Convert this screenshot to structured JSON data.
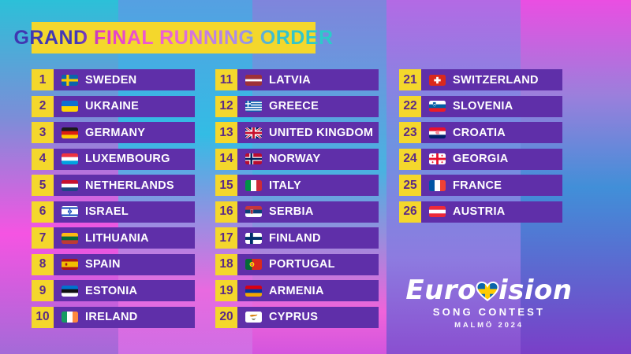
{
  "title": "GRAND FINAL RUNNING ORDER",
  "entries": [
    {
      "num": "1",
      "country": "SWEDEN",
      "flag": "se"
    },
    {
      "num": "2",
      "country": "UKRAINE",
      "flag": "ua"
    },
    {
      "num": "3",
      "country": "GERMANY",
      "flag": "de"
    },
    {
      "num": "4",
      "country": "LUXEMBOURG",
      "flag": "lu"
    },
    {
      "num": "5",
      "country": "NETHERLANDS",
      "flag": "nl"
    },
    {
      "num": "6",
      "country": "ISRAEL",
      "flag": "il"
    },
    {
      "num": "7",
      "country": "LITHUANIA",
      "flag": "lt"
    },
    {
      "num": "8",
      "country": "SPAIN",
      "flag": "es"
    },
    {
      "num": "9",
      "country": "ESTONIA",
      "flag": "ee"
    },
    {
      "num": "10",
      "country": "IRELAND",
      "flag": "ie"
    },
    {
      "num": "11",
      "country": "LATVIA",
      "flag": "lv"
    },
    {
      "num": "12",
      "country": "GREECE",
      "flag": "gr"
    },
    {
      "num": "13",
      "country": "UNITED KINGDOM",
      "flag": "gb"
    },
    {
      "num": "14",
      "country": "NORWAY",
      "flag": "no"
    },
    {
      "num": "15",
      "country": "ITALY",
      "flag": "it"
    },
    {
      "num": "16",
      "country": "SERBIA",
      "flag": "rs"
    },
    {
      "num": "17",
      "country": "FINLAND",
      "flag": "fi"
    },
    {
      "num": "18",
      "country": "PORTUGAL",
      "flag": "pt"
    },
    {
      "num": "19",
      "country": "ARMENIA",
      "flag": "am"
    },
    {
      "num": "20",
      "country": "CYPRUS",
      "flag": "cy"
    },
    {
      "num": "21",
      "country": "SWITZERLAND",
      "flag": "ch"
    },
    {
      "num": "22",
      "country": "SLOVENIA",
      "flag": "si"
    },
    {
      "num": "23",
      "country": "CROATIA",
      "flag": "hr"
    },
    {
      "num": "24",
      "country": "GEORGIA",
      "flag": "ge"
    },
    {
      "num": "25",
      "country": "FRANCE",
      "flag": "fr"
    },
    {
      "num": "26",
      "country": "AUSTRIA",
      "flag": "at"
    }
  ],
  "logo": {
    "wordmark_pre": "Euro",
    "wordmark_post": "ision",
    "heart_icon": "swedish-flag-heart-icon",
    "subtitle": "SONG CONTEST",
    "location_year": "MALMÖ 2024"
  },
  "colors": {
    "accent_yellow": "#f4d72c",
    "bar_purple": "#5f2fa9",
    "number_purple": "#5b2a86"
  }
}
